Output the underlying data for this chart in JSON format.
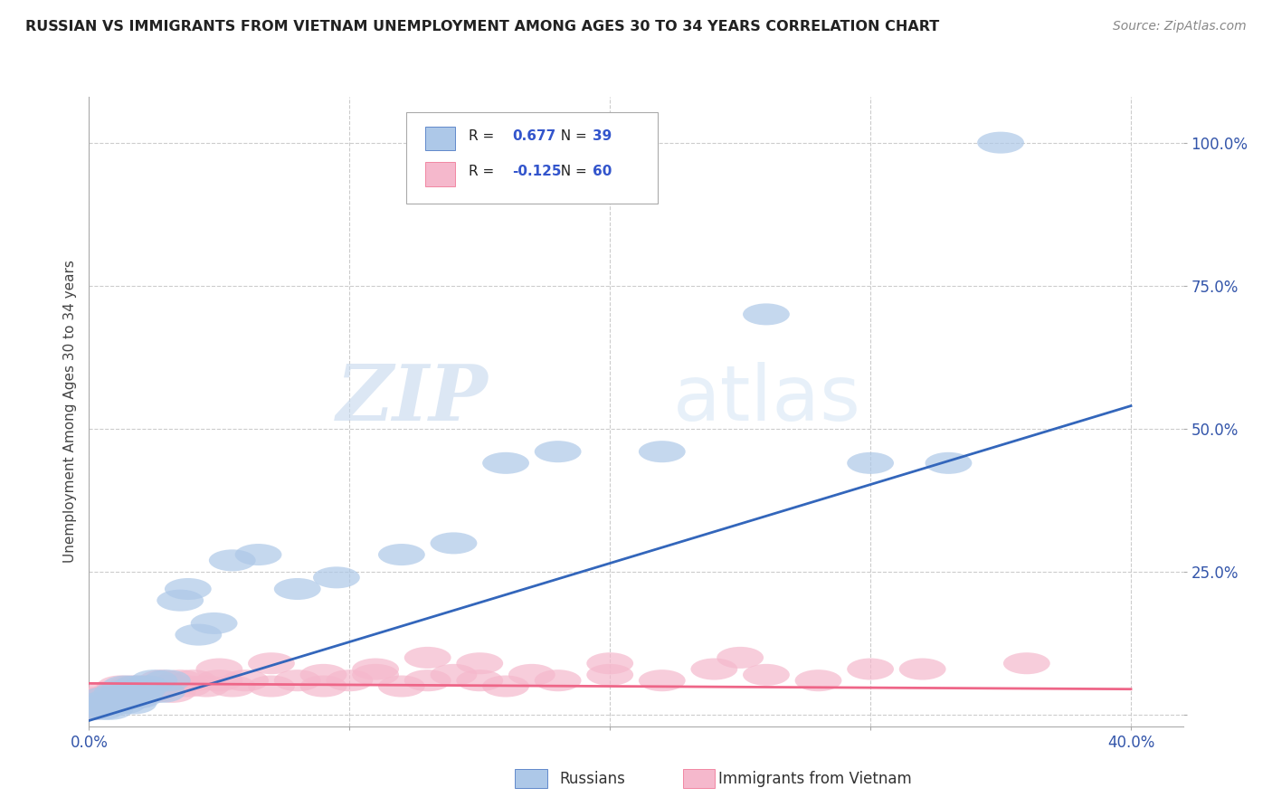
{
  "title": "RUSSIAN VS IMMIGRANTS FROM VIETNAM UNEMPLOYMENT AMONG AGES 30 TO 34 YEARS CORRELATION CHART",
  "source": "Source: ZipAtlas.com",
  "ylabel": "Unemployment Among Ages 30 to 34 years",
  "xlim": [
    0.0,
    0.42
  ],
  "ylim": [
    -0.02,
    1.08
  ],
  "xticks": [
    0.0,
    0.1,
    0.2,
    0.3,
    0.4
  ],
  "xticklabels": [
    "0.0%",
    "",
    "",
    "",
    "40.0%"
  ],
  "yticks": [
    0.0,
    0.25,
    0.5,
    0.75,
    1.0
  ],
  "yticklabels": [
    "",
    "25.0%",
    "50.0%",
    "75.0%",
    "100.0%"
  ],
  "r_russian": 0.677,
  "n_russian": 39,
  "r_vietnam": -0.125,
  "n_vietnam": 60,
  "russian_color": "#adc8e8",
  "vietnam_color": "#f5b8cc",
  "russian_line_color": "#3366bb",
  "vietnam_line_color": "#ee6688",
  "watermark_zip": "ZIP",
  "watermark_atlas": "atlas",
  "background_color": "#ffffff",
  "grid_color": "#cccccc",
  "russian_scatter_x": [
    0.001,
    0.003,
    0.005,
    0.006,
    0.007,
    0.008,
    0.009,
    0.01,
    0.011,
    0.012,
    0.013,
    0.014,
    0.015,
    0.016,
    0.017,
    0.018,
    0.019,
    0.02,
    0.022,
    0.025,
    0.028,
    0.03,
    0.035,
    0.038,
    0.042,
    0.048,
    0.055,
    0.065,
    0.08,
    0.095,
    0.12,
    0.14,
    0.16,
    0.18,
    0.22,
    0.26,
    0.3,
    0.33,
    0.35
  ],
  "russian_scatter_y": [
    0.01,
    0.02,
    0.01,
    0.03,
    0.02,
    0.01,
    0.03,
    0.02,
    0.04,
    0.03,
    0.02,
    0.05,
    0.03,
    0.04,
    0.02,
    0.05,
    0.03,
    0.04,
    0.05,
    0.06,
    0.04,
    0.06,
    0.2,
    0.22,
    0.14,
    0.16,
    0.27,
    0.28,
    0.22,
    0.24,
    0.28,
    0.3,
    0.44,
    0.46,
    0.46,
    0.7,
    0.44,
    0.44,
    1.0
  ],
  "vietnam_scatter_x": [
    0.001,
    0.002,
    0.003,
    0.004,
    0.005,
    0.006,
    0.007,
    0.008,
    0.009,
    0.01,
    0.011,
    0.012,
    0.013,
    0.014,
    0.015,
    0.016,
    0.017,
    0.018,
    0.019,
    0.02,
    0.022,
    0.025,
    0.028,
    0.03,
    0.032,
    0.035,
    0.038,
    0.04,
    0.045,
    0.05,
    0.055,
    0.06,
    0.07,
    0.08,
    0.09,
    0.1,
    0.11,
    0.12,
    0.13,
    0.14,
    0.15,
    0.16,
    0.17,
    0.18,
    0.2,
    0.22,
    0.24,
    0.26,
    0.28,
    0.3,
    0.05,
    0.07,
    0.09,
    0.11,
    0.13,
    0.15,
    0.2,
    0.25,
    0.32,
    0.36
  ],
  "vietnam_scatter_y": [
    0.02,
    0.01,
    0.03,
    0.02,
    0.03,
    0.02,
    0.04,
    0.03,
    0.02,
    0.04,
    0.03,
    0.05,
    0.03,
    0.04,
    0.03,
    0.05,
    0.04,
    0.03,
    0.05,
    0.04,
    0.05,
    0.04,
    0.06,
    0.05,
    0.04,
    0.06,
    0.05,
    0.06,
    0.05,
    0.06,
    0.05,
    0.06,
    0.05,
    0.06,
    0.05,
    0.06,
    0.07,
    0.05,
    0.06,
    0.07,
    0.06,
    0.05,
    0.07,
    0.06,
    0.07,
    0.06,
    0.08,
    0.07,
    0.06,
    0.08,
    0.08,
    0.09,
    0.07,
    0.08,
    0.1,
    0.09,
    0.09,
    0.1,
    0.08,
    0.09
  ],
  "blue_line_x0": 0.0,
  "blue_line_y0": -0.01,
  "blue_line_x1": 0.4,
  "blue_line_y1": 0.54,
  "pink_line_x0": 0.0,
  "pink_line_y0": 0.055,
  "pink_line_x1": 0.4,
  "pink_line_y1": 0.045
}
